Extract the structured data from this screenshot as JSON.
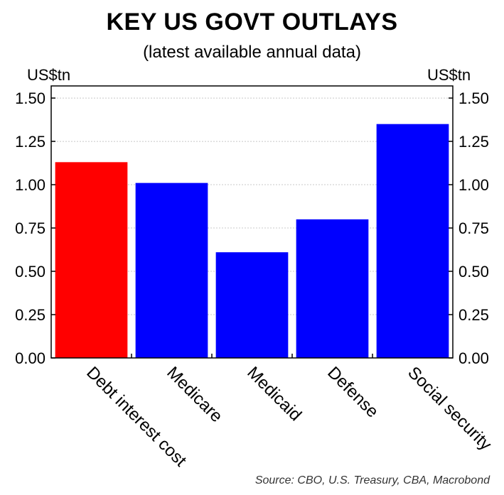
{
  "chart_data": {
    "type": "bar",
    "title": "KEY US GOVT OUTLAYS",
    "subtitle": "(latest available annual data)",
    "ylabel_left": "US$tn",
    "ylabel_right": "US$tn",
    "xlabel": "",
    "categories": [
      "Debt interest cost",
      "Medicare",
      "Medicaid",
      "Defense",
      "Social security"
    ],
    "values": [
      1.13,
      1.01,
      0.61,
      0.8,
      1.35
    ],
    "bar_colors": [
      "#ff0000",
      "#0000ff",
      "#0000ff",
      "#0000ff",
      "#0000ff"
    ],
    "ylim": [
      0,
      1.5
    ],
    "yticks": [
      "0.00",
      "0.25",
      "0.50",
      "0.75",
      "1.00",
      "1.25",
      "1.50"
    ],
    "grid": true,
    "source": "Source: CBO, U.S. Treasury, CBA, Macrobond"
  }
}
